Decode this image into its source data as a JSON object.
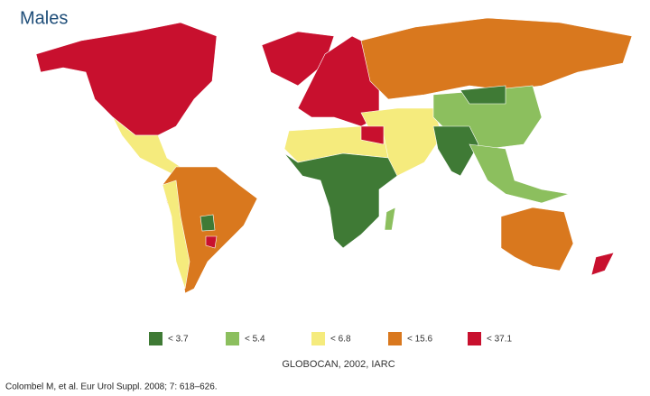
{
  "title": "Males",
  "legend": {
    "items": [
      {
        "label": "< 3.7",
        "color": "#3f7a35"
      },
      {
        "label": "< 5.4",
        "color": "#8cbf5e"
      },
      {
        "label": "< 6.8",
        "color": "#f5eb7d"
      },
      {
        "label": "< 15.6",
        "color": "#d9781e"
      },
      {
        "label": "< 37.1",
        "color": "#c8102e"
      }
    ],
    "source": "GLOBOCAN, 2002, IARC"
  },
  "citation": "Colombel M, et al. Eur Urol Suppl. 2008; 7: 618–626."
}
